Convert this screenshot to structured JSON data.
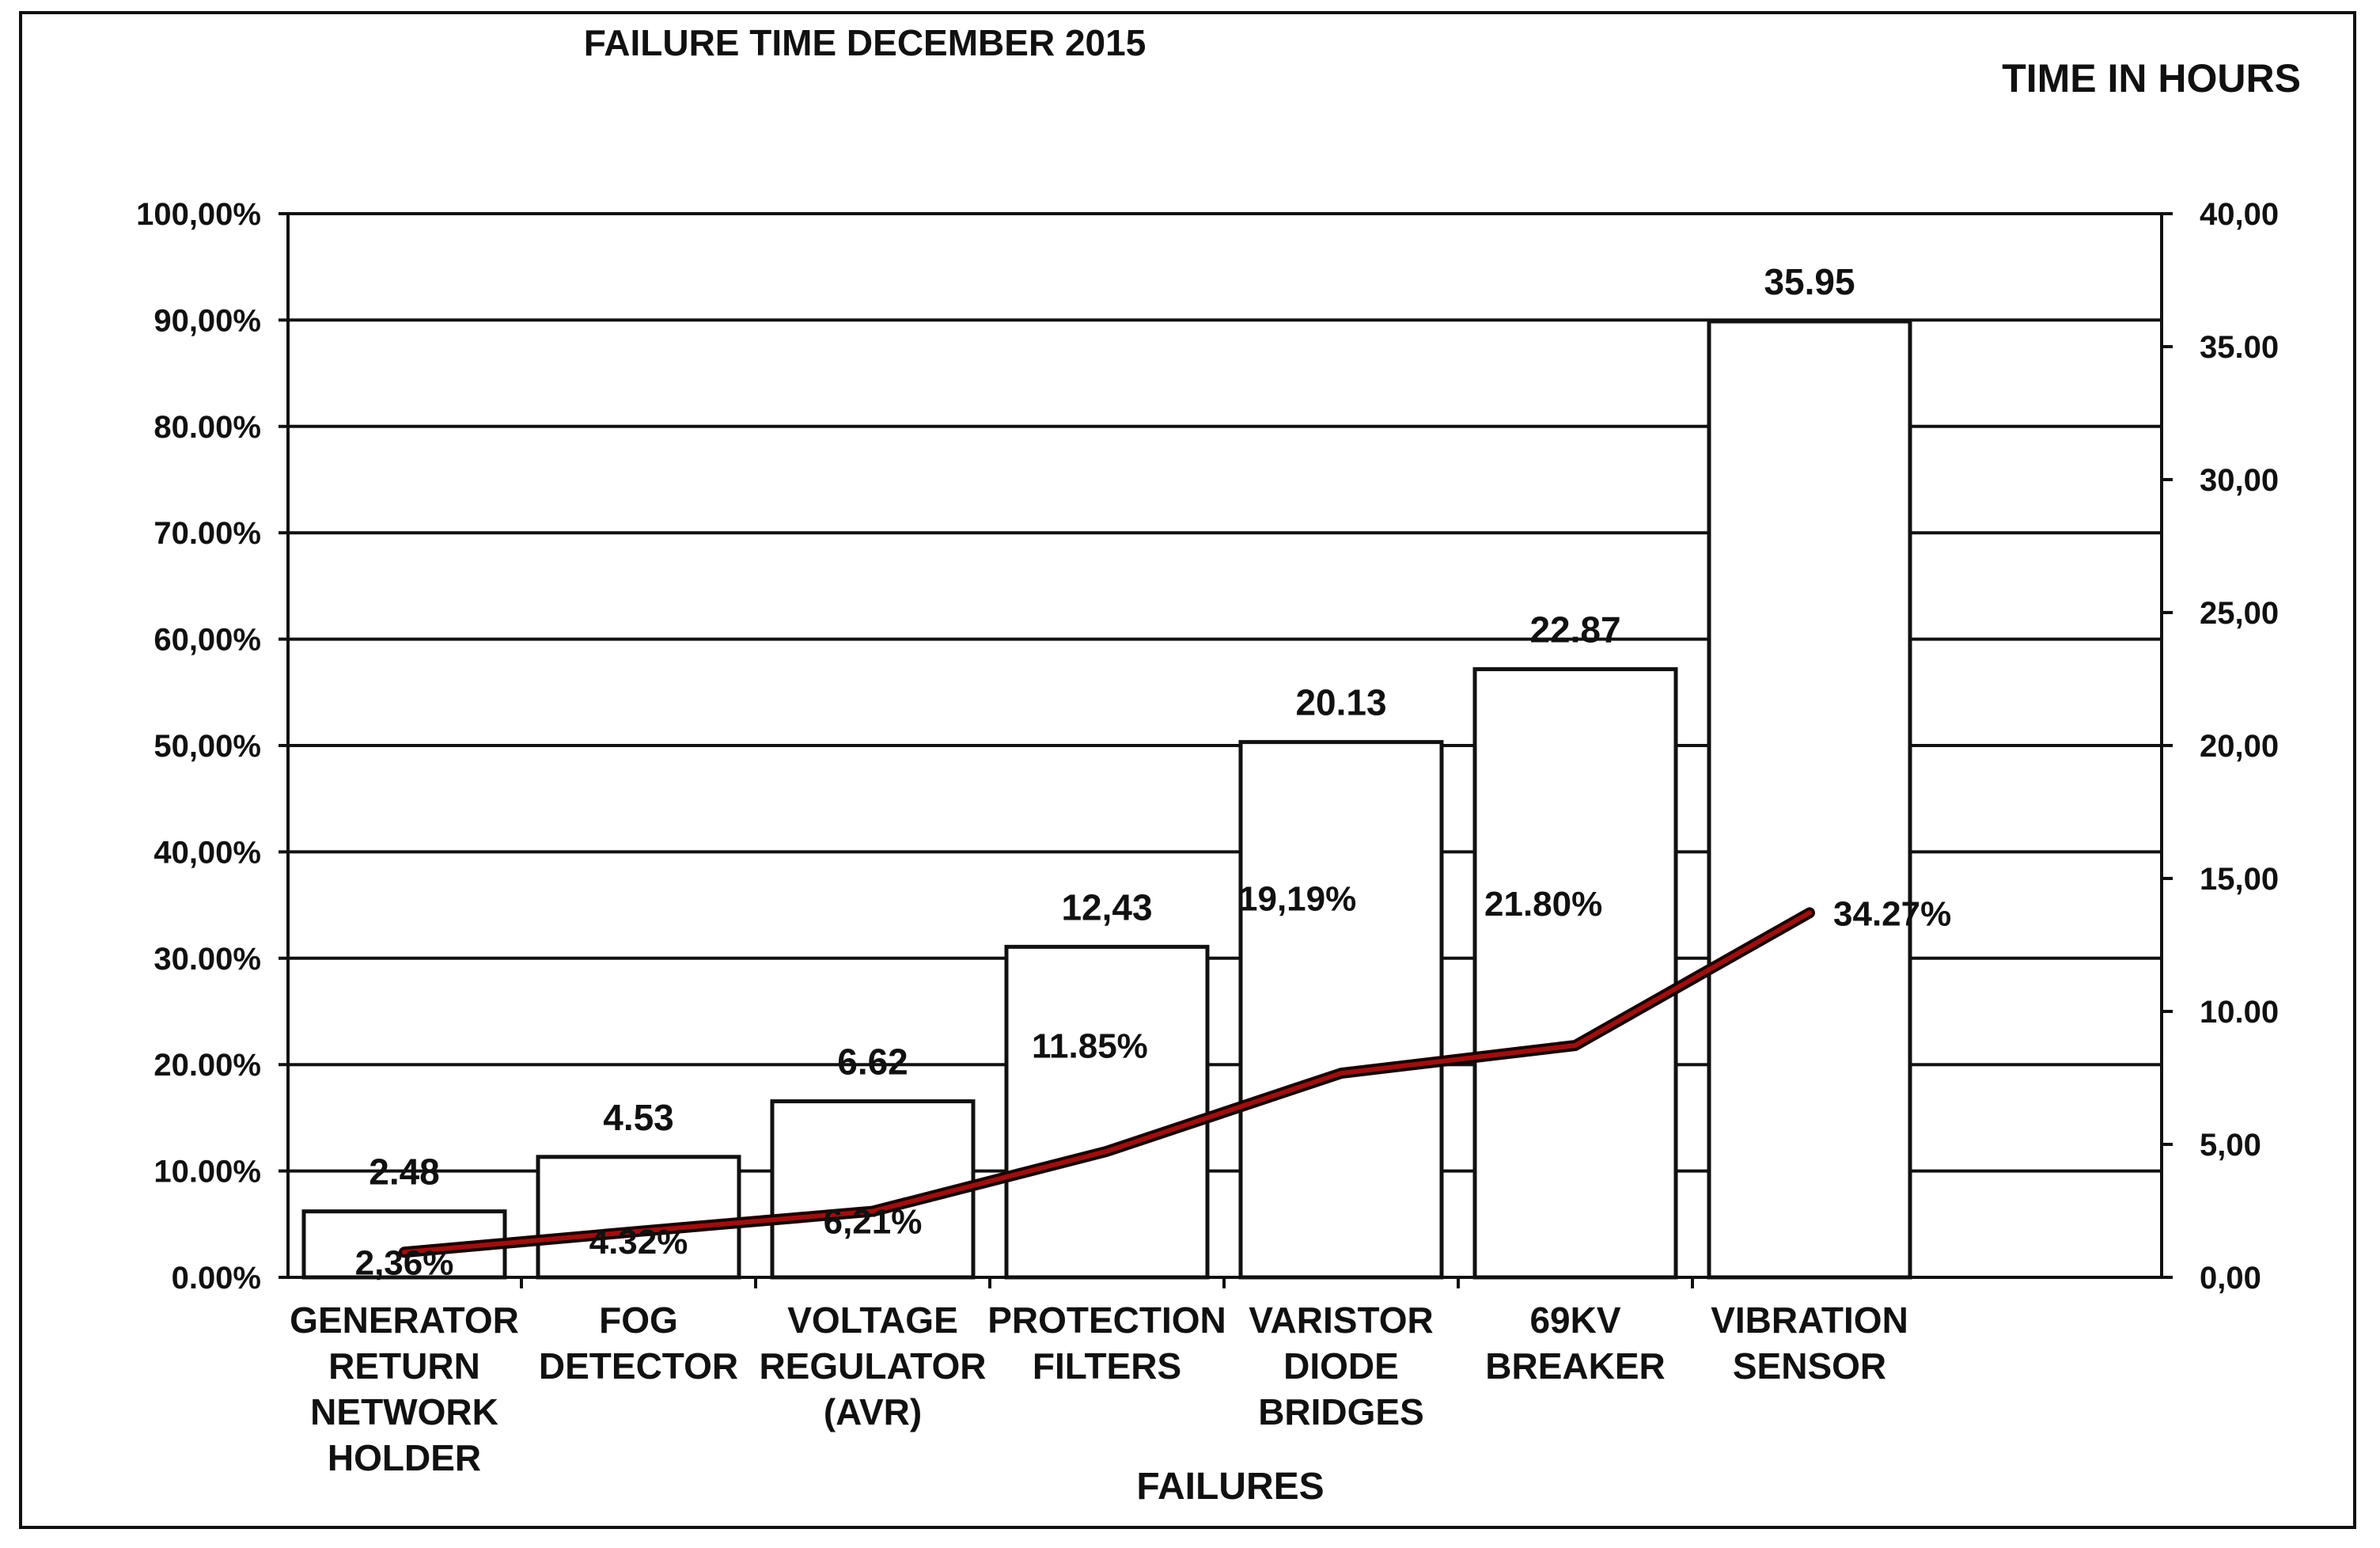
{
  "chart_data": {
    "type": "bar",
    "title": "FAILURE TIME DECEMBER 2015",
    "xlabel": "FAILURES",
    "y2label": "TIME IN HOURS",
    "categories": [
      [
        "GENERATOR",
        "RETURN",
        "NETWORK",
        "HOLDER"
      ],
      [
        "FOG",
        "DETECTOR"
      ],
      [
        "VOLTAGE",
        "REGULATOR",
        "(AVR)"
      ],
      [
        "PROTECTION",
        "FILTERS"
      ],
      [
        "VARISTOR",
        "DIODE",
        "BRIDGES"
      ],
      [
        "69KV",
        "BREAKER"
      ],
      [
        "VIBRATION",
        "SENSOR"
      ]
    ],
    "series": [
      {
        "axis": "right",
        "type": "bar",
        "values": [
          2.48,
          4.53,
          6.62,
          12.43,
          20.13,
          22.87,
          35.95
        ],
        "labels": [
          "2.48",
          "4.53",
          "6.62",
          "12,43",
          "20.13",
          "22.87",
          "35.95"
        ]
      },
      {
        "axis": "left",
        "type": "line",
        "values": [
          2.36,
          4.32,
          6.21,
          11.85,
          19.19,
          21.8,
          34.27
        ],
        "labels": [
          "2,36%",
          "4.32%",
          "6,21%",
          "11.85%",
          "19,19%",
          "21.80%",
          "34.27%"
        ]
      }
    ],
    "ylim": [
      0,
      100
    ],
    "y2lim": [
      0,
      40
    ],
    "yticks": [
      "0.00%",
      "10.00%",
      "20.00%",
      "30.00%",
      "40,00%",
      "50,00%",
      "60,00%",
      "70.00%",
      "80.00%",
      "90,00%",
      "100,00%"
    ],
    "y2ticks": [
      "0,00",
      "5,00",
      "10.00",
      "15,00",
      "20,00",
      "25,00",
      "30,00",
      "35.00",
      "40,00"
    ],
    "grid": true,
    "colors": {
      "line": "#9b1010",
      "line_shadow": "#1a0000",
      "bars": "#ffffff",
      "bar_stroke": "#111111"
    }
  }
}
